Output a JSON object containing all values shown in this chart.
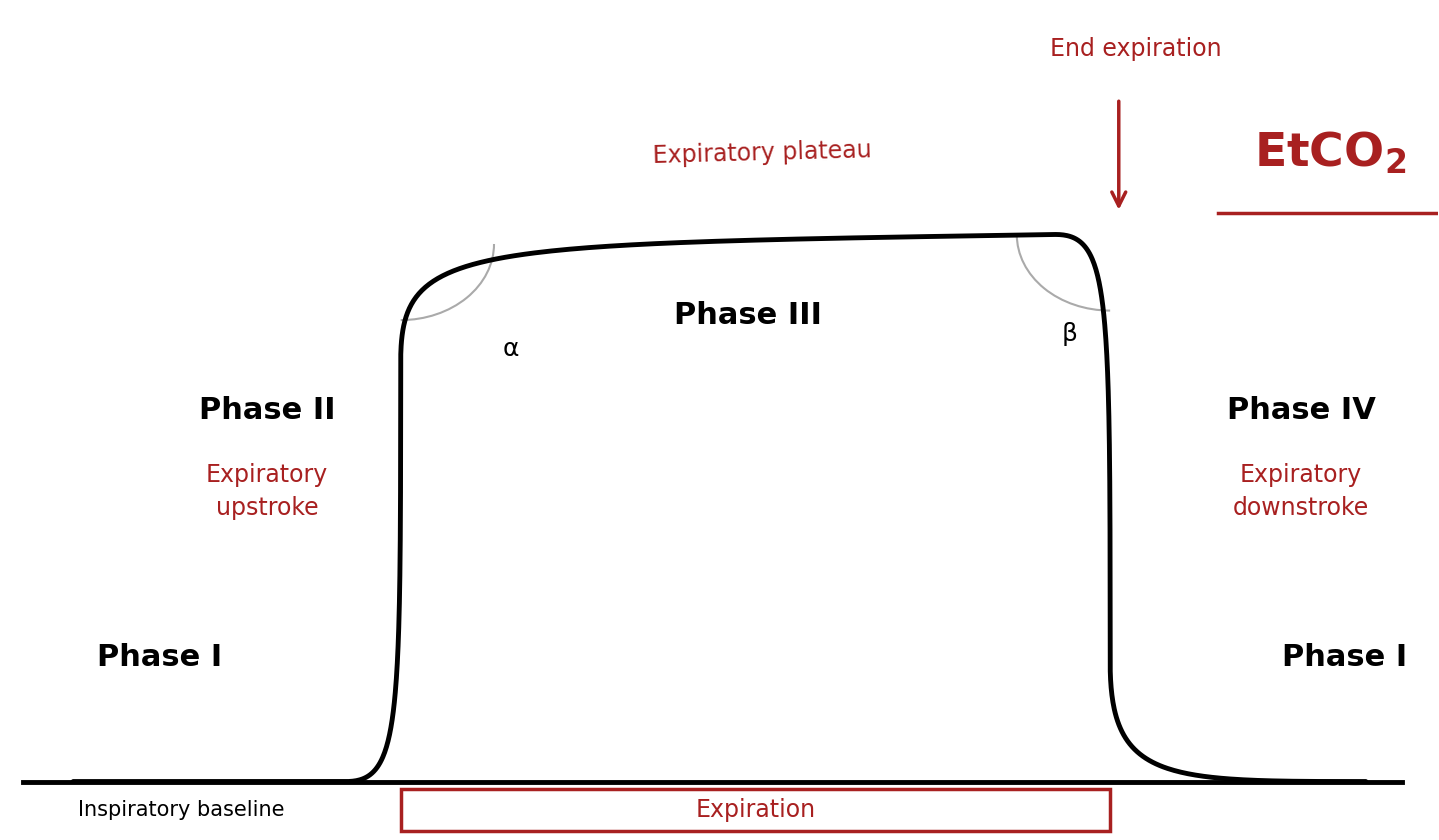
{
  "bg_color": "#ffffff",
  "line_color": "#000000",
  "red_color": "#a82020",
  "line_width": 3.5,
  "phase1_left_label": "Phase I",
  "phase2_label": "Phase II",
  "phase2_sub": "Expiratory\nupstroke",
  "phase3_label": "Phase III",
  "phase4_label": "Phase IV",
  "phase4_sub": "Expiratory\ndownstroke",
  "phase1_right_label": "Phase I",
  "alpha_label": "α",
  "beta_label": "β",
  "expiratory_plateau_label": "Expiratory plateau",
  "end_expiration_label": "End expiration",
  "etco2_label": "EtCO₂",
  "inspiratory_baseline_label": "Inspiratory baseline",
  "expiration_label": "Expiration",
  "xlim": [
    0,
    10
  ],
  "ylim": [
    -0.6,
    8.2
  ]
}
